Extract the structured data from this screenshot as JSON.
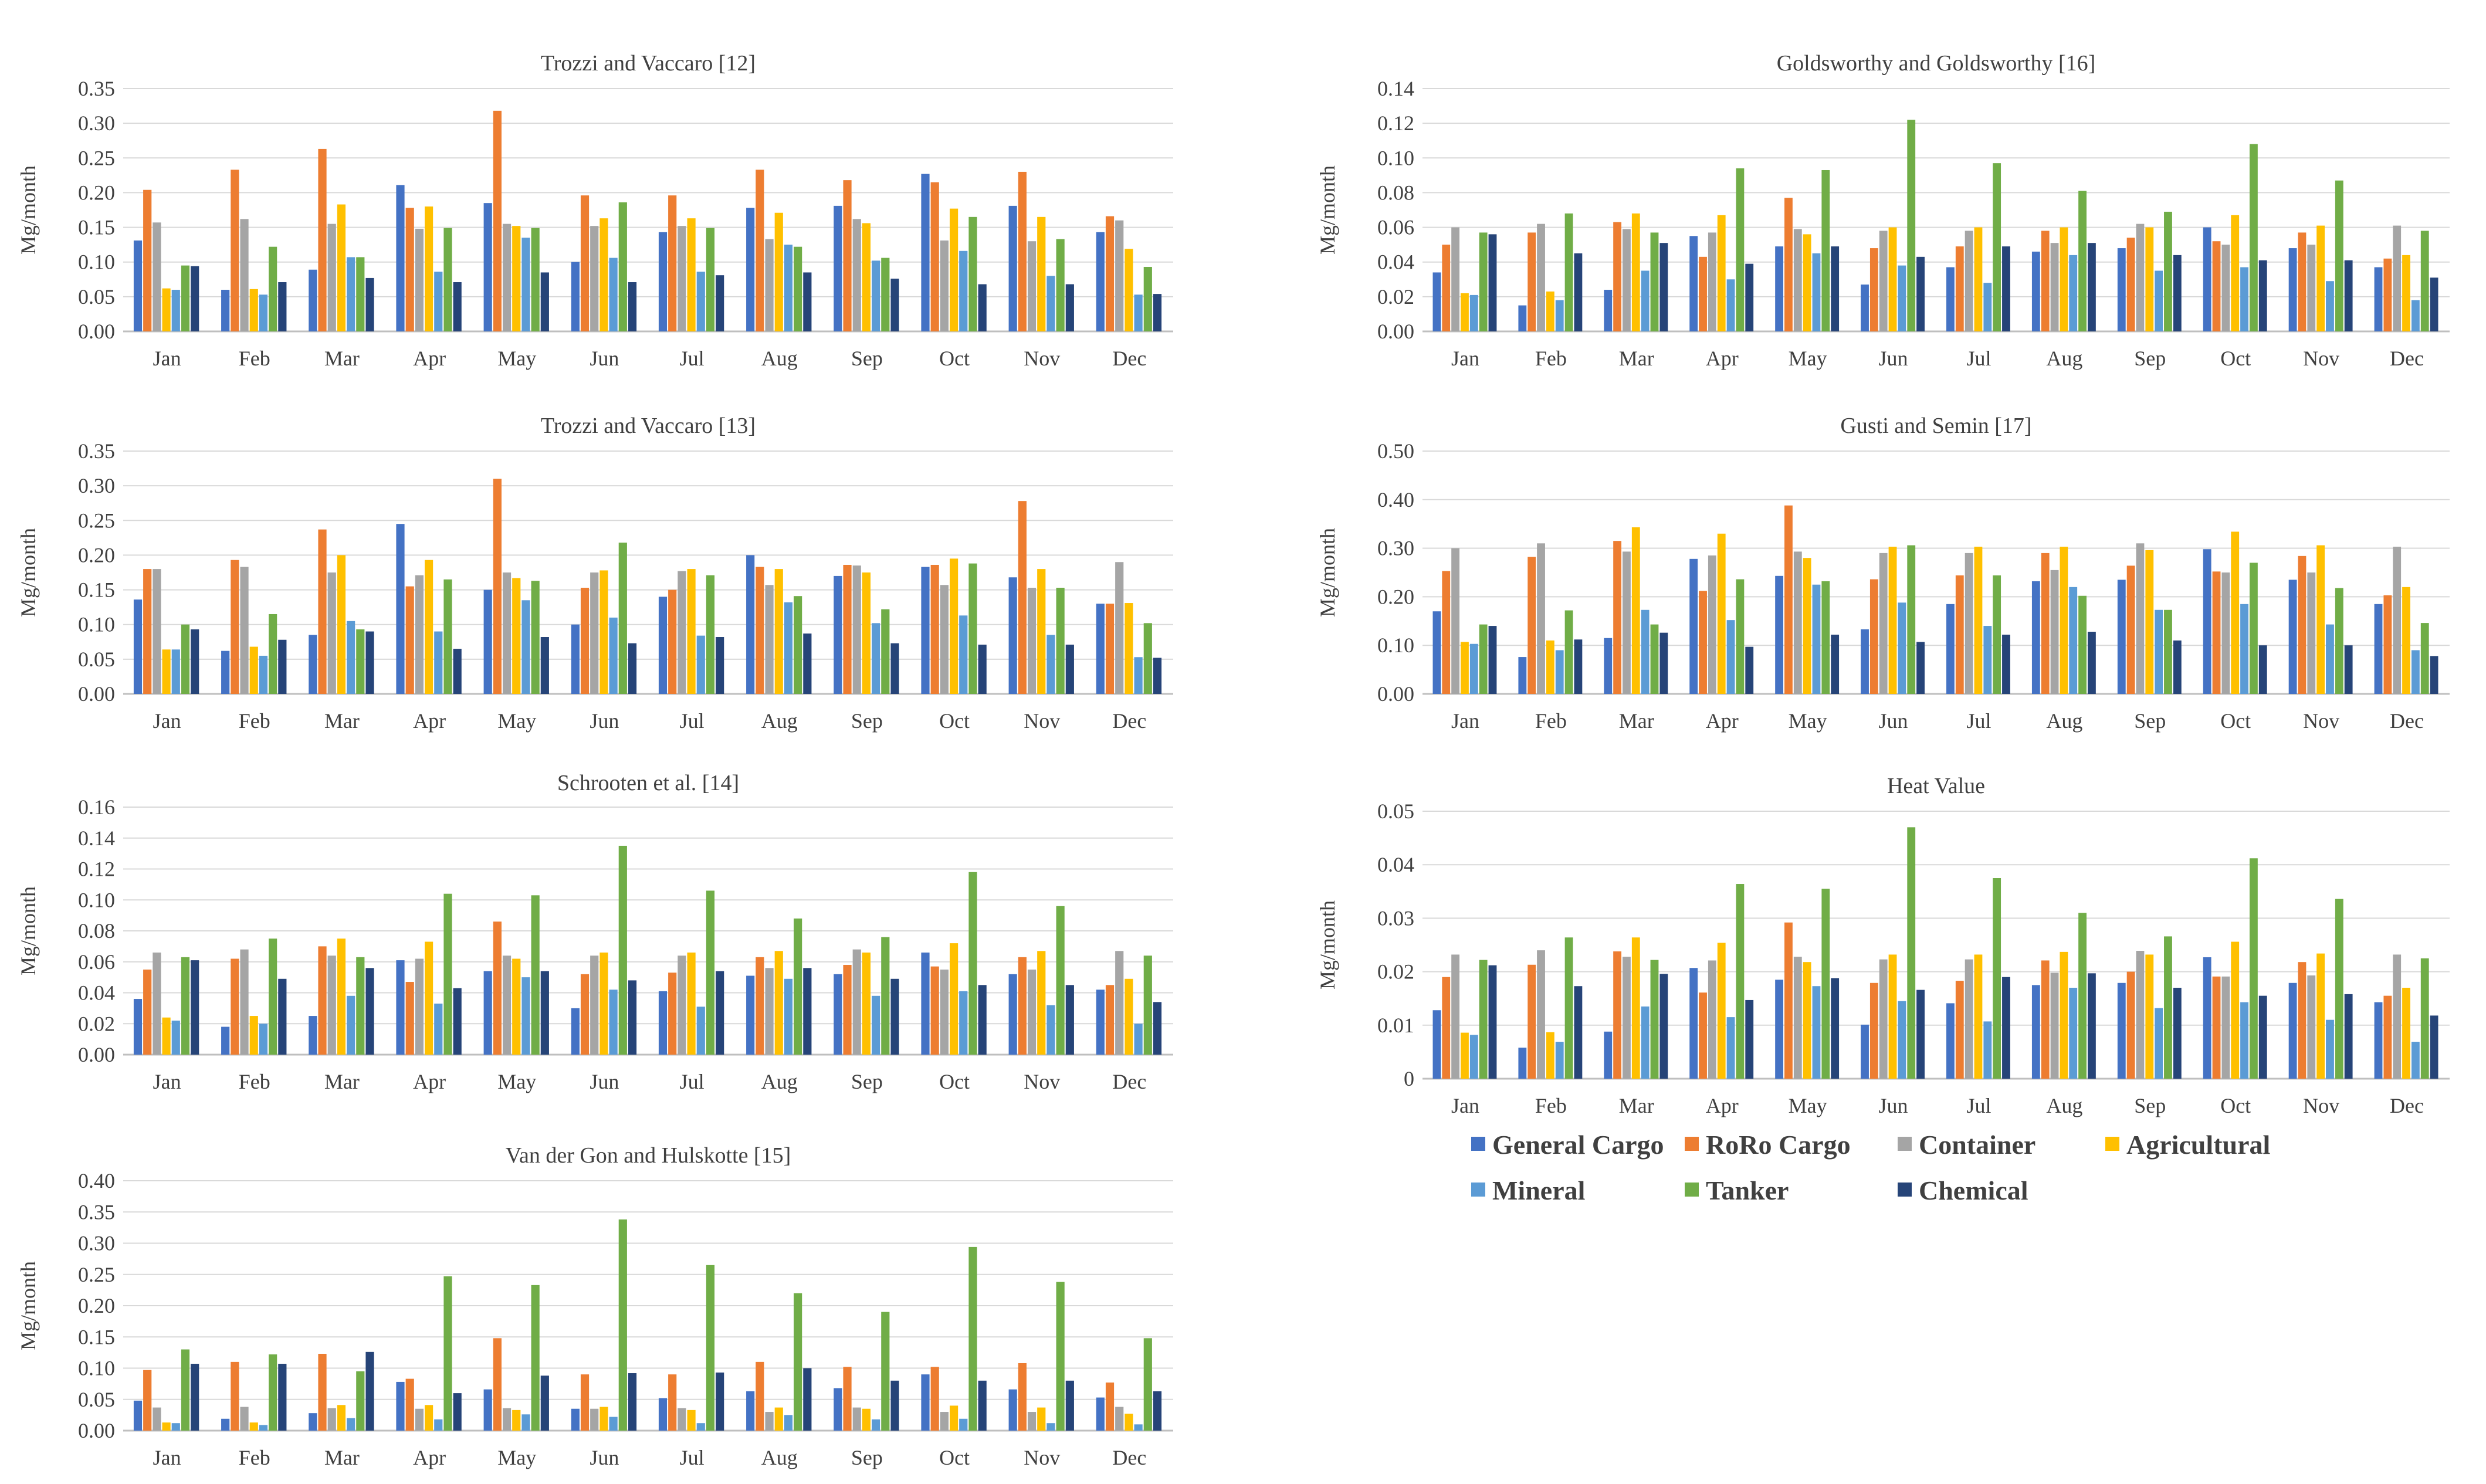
{
  "chart_data": [
    {
      "type": "bar",
      "title": "Trozzi and Vaccaro [12]",
      "ylabel": "Mg/month",
      "ylim": [
        0,
        0.35
      ],
      "yticks": [
        "0.00",
        "0.05",
        "0.10",
        "0.15",
        "0.20",
        "0.25",
        "0.30",
        "0.35"
      ],
      "grid": true,
      "categories": [
        "Jan",
        "Feb",
        "Mar",
        "Apr",
        "May",
        "Jun",
        "Jul",
        "Aug",
        "Sep",
        "Oct",
        "Nov",
        "Dec"
      ],
      "series": [
        {
          "name": "General Cargo",
          "values": [
            0.131,
            0.06,
            0.089,
            0.211,
            0.185,
            0.1,
            0.143,
            0.178,
            0.181,
            0.227,
            0.181,
            0.143
          ]
        },
        {
          "name": "RoRo Cargo",
          "values": [
            0.204,
            0.233,
            0.263,
            0.178,
            0.318,
            0.196,
            0.196,
            0.233,
            0.218,
            0.215,
            0.23,
            0.166
          ]
        },
        {
          "name": "Container",
          "values": [
            0.157,
            0.162,
            0.155,
            0.148,
            0.155,
            0.152,
            0.152,
            0.133,
            0.162,
            0.131,
            0.13,
            0.16
          ]
        },
        {
          "name": "Agricultural",
          "values": [
            0.062,
            0.061,
            0.183,
            0.18,
            0.152,
            0.163,
            0.163,
            0.171,
            0.156,
            0.177,
            0.165,
            0.119
          ]
        },
        {
          "name": "Mineral",
          "values": [
            0.06,
            0.053,
            0.107,
            0.086,
            0.135,
            0.106,
            0.086,
            0.125,
            0.102,
            0.116,
            0.08,
            0.053
          ]
        },
        {
          "name": "Tanker",
          "values": [
            0.095,
            0.122,
            0.107,
            0.149,
            0.149,
            0.186,
            0.149,
            0.122,
            0.106,
            0.165,
            0.133,
            0.093
          ]
        },
        {
          "name": "Chemical",
          "values": [
            0.094,
            0.071,
            0.077,
            0.071,
            0.085,
            0.071,
            0.081,
            0.085,
            0.076,
            0.068,
            0.068,
            0.054
          ]
        }
      ]
    },
    {
      "type": "bar",
      "title": "Trozzi and Vaccaro [13]",
      "ylabel": "Mg/month",
      "ylim": [
        0,
        0.35
      ],
      "yticks": [
        "0.00",
        "0.05",
        "0.10",
        "0.15",
        "0.20",
        "0.25",
        "0.30",
        "0.35"
      ],
      "grid": true,
      "categories": [
        "Jan",
        "Feb",
        "Mar",
        "Apr",
        "May",
        "Jun",
        "Jul",
        "Aug",
        "Sep",
        "Oct",
        "Nov",
        "Dec"
      ],
      "series": [
        {
          "name": "General Cargo",
          "values": [
            0.136,
            0.062,
            0.085,
            0.245,
            0.15,
            0.1,
            0.14,
            0.2,
            0.17,
            0.183,
            0.168,
            0.13
          ]
        },
        {
          "name": "RoRo Cargo",
          "values": [
            0.18,
            0.193,
            0.237,
            0.155,
            0.31,
            0.153,
            0.15,
            0.183,
            0.186,
            0.186,
            0.278,
            0.13
          ]
        },
        {
          "name": "Container",
          "values": [
            0.18,
            0.183,
            0.175,
            0.171,
            0.175,
            0.175,
            0.177,
            0.157,
            0.185,
            0.157,
            0.153,
            0.19
          ]
        },
        {
          "name": "Agricultural",
          "values": [
            0.064,
            0.068,
            0.2,
            0.193,
            0.167,
            0.178,
            0.18,
            0.18,
            0.175,
            0.195,
            0.18,
            0.131
          ]
        },
        {
          "name": "Mineral",
          "values": [
            0.064,
            0.055,
            0.105,
            0.09,
            0.135,
            0.11,
            0.084,
            0.132,
            0.102,
            0.113,
            0.085,
            0.053
          ]
        },
        {
          "name": "Tanker",
          "values": [
            0.1,
            0.115,
            0.093,
            0.165,
            0.163,
            0.218,
            0.171,
            0.141,
            0.122,
            0.188,
            0.153,
            0.102
          ]
        },
        {
          "name": "Chemical",
          "values": [
            0.093,
            0.078,
            0.09,
            0.065,
            0.082,
            0.073,
            0.082,
            0.087,
            0.073,
            0.071,
            0.071,
            0.052
          ]
        }
      ]
    },
    {
      "type": "bar",
      "title": "Schrooten et al. [14]",
      "ylabel": "Mg/month",
      "ylim": [
        0,
        0.16
      ],
      "yticks": [
        "0.00",
        "0.02",
        "0.04",
        "0.06",
        "0.08",
        "0.10",
        "0.12",
        "0.14",
        "0.16"
      ],
      "grid": true,
      "categories": [
        "Jan",
        "Feb",
        "Mar",
        "Apr",
        "May",
        "Jun",
        "Jul",
        "Aug",
        "Sep",
        "Oct",
        "Nov",
        "Dec"
      ],
      "series": [
        {
          "name": "General Cargo",
          "values": [
            0.036,
            0.018,
            0.025,
            0.061,
            0.054,
            0.03,
            0.041,
            0.051,
            0.052,
            0.066,
            0.052,
            0.042
          ]
        },
        {
          "name": "RoRo Cargo",
          "values": [
            0.055,
            0.062,
            0.07,
            0.047,
            0.086,
            0.052,
            0.053,
            0.063,
            0.058,
            0.057,
            0.063,
            0.045
          ]
        },
        {
          "name": "Container",
          "values": [
            0.066,
            0.068,
            0.064,
            0.062,
            0.064,
            0.064,
            0.064,
            0.056,
            0.068,
            0.055,
            0.055,
            0.067
          ]
        },
        {
          "name": "Agricultural",
          "values": [
            0.024,
            0.025,
            0.075,
            0.073,
            0.062,
            0.066,
            0.066,
            0.067,
            0.066,
            0.072,
            0.067,
            0.049
          ]
        },
        {
          "name": "Mineral",
          "values": [
            0.022,
            0.02,
            0.038,
            0.033,
            0.05,
            0.042,
            0.031,
            0.049,
            0.038,
            0.041,
            0.032,
            0.02
          ]
        },
        {
          "name": "Tanker",
          "values": [
            0.063,
            0.075,
            0.063,
            0.104,
            0.103,
            0.135,
            0.106,
            0.088,
            0.076,
            0.118,
            0.096,
            0.064
          ]
        },
        {
          "name": "Chemical",
          "values": [
            0.061,
            0.049,
            0.056,
            0.043,
            0.054,
            0.048,
            0.054,
            0.056,
            0.049,
            0.045,
            0.045,
            0.034
          ]
        }
      ]
    },
    {
      "type": "bar",
      "title": "Van der Gon and Hulskotte [15]",
      "ylabel": "Mg/month",
      "ylim": [
        0,
        0.4
      ],
      "yticks": [
        "0.00",
        "0.05",
        "0.10",
        "0.15",
        "0.20",
        "0.25",
        "0.30",
        "0.35",
        "0.40"
      ],
      "grid": true,
      "categories": [
        "Jan",
        "Feb",
        "Mar",
        "Apr",
        "May",
        "Jun",
        "Jul",
        "Aug",
        "Sep",
        "Oct",
        "Nov",
        "Dec"
      ],
      "series": [
        {
          "name": "General Cargo",
          "values": [
            0.048,
            0.019,
            0.028,
            0.078,
            0.066,
            0.035,
            0.052,
            0.063,
            0.068,
            0.09,
            0.066,
            0.053
          ]
        },
        {
          "name": "RoRo Cargo",
          "values": [
            0.097,
            0.11,
            0.123,
            0.083,
            0.148,
            0.09,
            0.09,
            0.11,
            0.102,
            0.102,
            0.108,
            0.077
          ]
        },
        {
          "name": "Container",
          "values": [
            0.037,
            0.038,
            0.036,
            0.035,
            0.036,
            0.035,
            0.036,
            0.03,
            0.037,
            0.03,
            0.03,
            0.038
          ]
        },
        {
          "name": "Agricultural",
          "values": [
            0.013,
            0.013,
            0.041,
            0.041,
            0.033,
            0.038,
            0.033,
            0.037,
            0.035,
            0.04,
            0.037,
            0.027
          ]
        },
        {
          "name": "Mineral",
          "values": [
            0.012,
            0.009,
            0.02,
            0.018,
            0.026,
            0.022,
            0.012,
            0.025,
            0.018,
            0.019,
            0.012,
            0.01
          ]
        },
        {
          "name": "Tanker",
          "values": [
            0.13,
            0.122,
            0.095,
            0.247,
            0.233,
            0.338,
            0.265,
            0.22,
            0.19,
            0.294,
            0.238,
            0.148
          ]
        },
        {
          "name": "Chemical",
          "values": [
            0.107,
            0.107,
            0.126,
            0.06,
            0.088,
            0.092,
            0.093,
            0.1,
            0.08,
            0.08,
            0.08,
            0.063
          ]
        }
      ]
    },
    {
      "type": "bar",
      "title": "Goldsworthy and Goldsworthy [16]",
      "ylabel": "Mg/month",
      "ylim": [
        0,
        0.14
      ],
      "yticks": [
        "0.00",
        "0.02",
        "0.04",
        "0.06",
        "0.08",
        "0.10",
        "0.12",
        "0.14"
      ],
      "grid": true,
      "categories": [
        "Jan",
        "Feb",
        "Mar",
        "Apr",
        "May",
        "Jun",
        "Jul",
        "Aug",
        "Sep",
        "Oct",
        "Nov",
        "Dec"
      ],
      "series": [
        {
          "name": "General Cargo",
          "values": [
            0.034,
            0.015,
            0.024,
            0.055,
            0.049,
            0.027,
            0.037,
            0.046,
            0.048,
            0.06,
            0.048,
            0.037
          ]
        },
        {
          "name": "RoRo Cargo",
          "values": [
            0.05,
            0.057,
            0.063,
            0.043,
            0.077,
            0.048,
            0.049,
            0.058,
            0.054,
            0.052,
            0.057,
            0.042
          ]
        },
        {
          "name": "Container",
          "values": [
            0.06,
            0.062,
            0.059,
            0.057,
            0.059,
            0.058,
            0.058,
            0.051,
            0.062,
            0.05,
            0.05,
            0.061
          ]
        },
        {
          "name": "Agricultural",
          "values": [
            0.022,
            0.023,
            0.068,
            0.067,
            0.056,
            0.06,
            0.06,
            0.06,
            0.06,
            0.067,
            0.061,
            0.044
          ]
        },
        {
          "name": "Mineral",
          "values": [
            0.021,
            0.018,
            0.035,
            0.03,
            0.045,
            0.038,
            0.028,
            0.044,
            0.035,
            0.037,
            0.029,
            0.018
          ]
        },
        {
          "name": "Tanker",
          "values": [
            0.057,
            0.068,
            0.057,
            0.094,
            0.093,
            0.122,
            0.097,
            0.081,
            0.069,
            0.108,
            0.087,
            0.058
          ]
        },
        {
          "name": "Chemical",
          "values": [
            0.056,
            0.045,
            0.051,
            0.039,
            0.049,
            0.043,
            0.049,
            0.051,
            0.044,
            0.041,
            0.041,
            0.031
          ]
        }
      ]
    },
    {
      "type": "bar",
      "title": "Gusti and Semin [17]",
      "ylabel": "Mg/month",
      "ylim": [
        0,
        0.5
      ],
      "yticks": [
        "0.00",
        "0.10",
        "0.20",
        "0.30",
        "0.40",
        "0.50"
      ],
      "grid": true,
      "categories": [
        "Jan",
        "Feb",
        "Mar",
        "Apr",
        "May",
        "Jun",
        "Jul",
        "Aug",
        "Sep",
        "Oct",
        "Nov",
        "Dec"
      ],
      "series": [
        {
          "name": "General Cargo",
          "values": [
            0.17,
            0.076,
            0.115,
            0.278,
            0.243,
            0.133,
            0.185,
            0.232,
            0.235,
            0.298,
            0.235,
            0.185
          ]
        },
        {
          "name": "RoRo Cargo",
          "values": [
            0.253,
            0.282,
            0.315,
            0.212,
            0.388,
            0.236,
            0.244,
            0.29,
            0.264,
            0.252,
            0.284,
            0.203
          ]
        },
        {
          "name": "Container",
          "values": [
            0.3,
            0.31,
            0.293,
            0.285,
            0.293,
            0.29,
            0.29,
            0.255,
            0.31,
            0.25,
            0.25,
            0.303
          ]
        },
        {
          "name": "Agricultural",
          "values": [
            0.107,
            0.11,
            0.343,
            0.33,
            0.28,
            0.303,
            0.303,
            0.303,
            0.296,
            0.334,
            0.306,
            0.22
          ]
        },
        {
          "name": "Mineral",
          "values": [
            0.103,
            0.09,
            0.173,
            0.152,
            0.225,
            0.188,
            0.14,
            0.22,
            0.173,
            0.185,
            0.143,
            0.09
          ]
        },
        {
          "name": "Tanker",
          "values": [
            0.143,
            0.172,
            0.143,
            0.236,
            0.232,
            0.306,
            0.244,
            0.202,
            0.173,
            0.27,
            0.218,
            0.146
          ]
        },
        {
          "name": "Chemical",
          "values": [
            0.14,
            0.112,
            0.126,
            0.097,
            0.122,
            0.107,
            0.122,
            0.128,
            0.11,
            0.1,
            0.1,
            0.078
          ]
        }
      ]
    },
    {
      "type": "bar",
      "title": "Heat Value",
      "ylabel": "Mg/month",
      "ylim": [
        0,
        0.05
      ],
      "yticks": [
        "0",
        "0.01",
        "0.02",
        "0.03",
        "0.04",
        "0.05"
      ],
      "grid": true,
      "categories": [
        "Jan",
        "Feb",
        "Mar",
        "Apr",
        "May",
        "Jun",
        "Jul",
        "Aug",
        "Sep",
        "Oct",
        "Nov",
        "Dec"
      ],
      "series": [
        {
          "name": "General Cargo",
          "values": [
            0.0128,
            0.0058,
            0.0088,
            0.0207,
            0.0185,
            0.0101,
            0.0141,
            0.0175,
            0.0179,
            0.0227,
            0.0179,
            0.0143
          ]
        },
        {
          "name": "RoRo Cargo",
          "values": [
            0.019,
            0.0213,
            0.0238,
            0.0161,
            0.0292,
            0.0179,
            0.0183,
            0.0221,
            0.02,
            0.0191,
            0.0218,
            0.0155
          ]
        },
        {
          "name": "Container",
          "values": [
            0.0232,
            0.024,
            0.0228,
            0.0221,
            0.0228,
            0.0223,
            0.0223,
            0.0198,
            0.0239,
            0.0191,
            0.0193,
            0.0232
          ]
        },
        {
          "name": "Agricultural",
          "values": [
            0.0086,
            0.0087,
            0.0264,
            0.0254,
            0.0218,
            0.0232,
            0.0232,
            0.0237,
            0.0232,
            0.0256,
            0.0234,
            0.017
          ]
        },
        {
          "name": "Mineral",
          "values": [
            0.0082,
            0.0069,
            0.0135,
            0.0115,
            0.0173,
            0.0145,
            0.0107,
            0.017,
            0.0132,
            0.0143,
            0.011,
            0.0069
          ]
        },
        {
          "name": "Tanker",
          "values": [
            0.0222,
            0.0264,
            0.0222,
            0.0364,
            0.0355,
            0.047,
            0.0375,
            0.031,
            0.0266,
            0.0412,
            0.0336,
            0.0225
          ]
        },
        {
          "name": "Chemical",
          "values": [
            0.0212,
            0.0173,
            0.0196,
            0.0147,
            0.0188,
            0.0166,
            0.019,
            0.0197,
            0.017,
            0.0155,
            0.0158,
            0.0118
          ]
        }
      ]
    }
  ],
  "legend": {
    "items": [
      {
        "label": "General Cargo",
        "color": "#4472C4"
      },
      {
        "label": "RoRo Cargo",
        "color": "#ED7D31"
      },
      {
        "label": "Container",
        "color": "#A5A5A5"
      },
      {
        "label": "Agricultural",
        "color": "#FFC000"
      },
      {
        "label": "Mineral",
        "color": "#5B9BD5"
      },
      {
        "label": "Tanker",
        "color": "#70AD47"
      },
      {
        "label": "Chemical",
        "color": "#264478"
      }
    ]
  }
}
